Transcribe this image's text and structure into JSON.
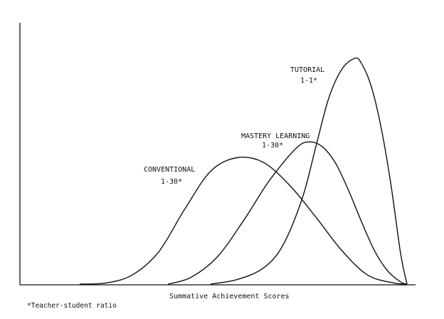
{
  "chart_data": {
    "type": "line",
    "title": "",
    "xlabel": "Summative Achievement Scores",
    "ylabel": "",
    "grid": false,
    "legend": "none",
    "footnote": "*Teacher-student ratio",
    "x_range": [
      0,
      100
    ],
    "y_range": [
      0,
      100
    ],
    "series": [
      {
        "name": "CONVENTIONAL",
        "sublabel": "1-30*",
        "x": [
          0,
          8,
          16,
          24,
          32,
          40,
          48,
          56,
          64,
          72,
          80,
          88,
          96,
          100
        ],
        "y": [
          0,
          0.5,
          4,
          14,
          33,
          50,
          56,
          54,
          44,
          30,
          15,
          4,
          0.5,
          0
        ]
      },
      {
        "name": "MASTERY LEARNING",
        "sublabel": "1-30*",
        "x": [
          27,
          34,
          42,
          50,
          58,
          66,
          70,
          74,
          78,
          82,
          86,
          90,
          94,
          98,
          100
        ],
        "y": [
          0,
          3,
          12,
          28,
          46,
          60,
          63,
          61,
          54,
          42,
          28,
          15,
          6,
          1,
          0
        ]
      },
      {
        "name": "TUTORIAL",
        "sublabel": "1-1*",
        "x": [
          40,
          48,
          56,
          62,
          68,
          72,
          76,
          80,
          84,
          86,
          89,
          92,
          95,
          98,
          100
        ],
        "y": [
          0,
          2,
          7,
          17,
          38,
          60,
          82,
          95,
          100,
          98,
          88,
          70,
          45,
          14,
          0
        ]
      }
    ]
  }
}
